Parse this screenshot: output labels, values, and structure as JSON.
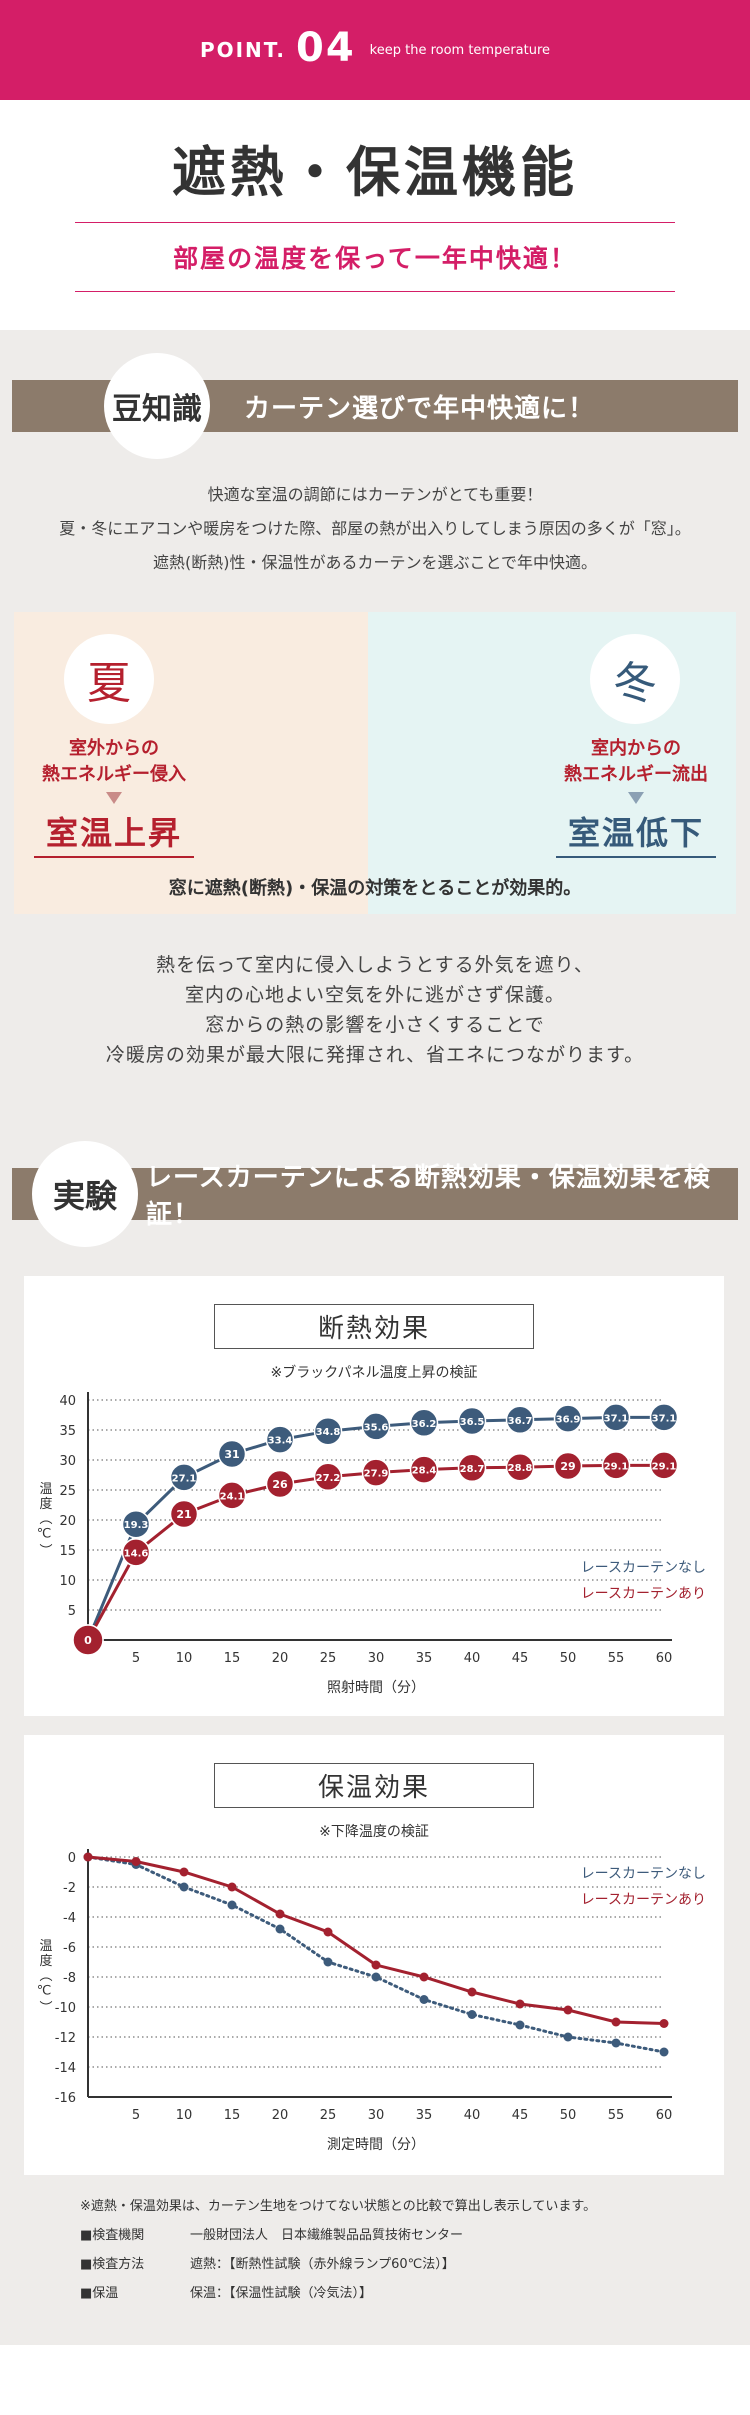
{
  "header": {
    "point_word": "POINT.",
    "point_num": "04",
    "point_sub": "keep the room temperature",
    "title": "遮熱・保温機能",
    "subtitle": "部屋の温度を保って一年中快適！"
  },
  "tip_banner": {
    "badge": "豆知識",
    "text": "カーテン選びで年中快適に！"
  },
  "intro_lines": [
    "快適な室温の調節にはカーテンがとても重要！",
    "夏・冬にエアコンや暖房をつけた際、部屋の熱が出入りしてしまう原因の多くが「窓」。",
    "遮熱(断熱)性・保温性があるカーテンを選ぶことで年中快適。"
  ],
  "season_panel": {
    "summer": {
      "kanji": "夏",
      "lead_1": "室外からの",
      "lead_2": "熱エネルギー侵入",
      "result": "室温上昇"
    },
    "winter": {
      "kanji": "冬",
      "lead_1": "室内からの",
      "lead_2": "熱エネルギー流出",
      "result": "室温低下"
    },
    "note": "窓に遮熱(断熱)・保温の対策をとることが効果的。",
    "colors": {
      "summer": "#b5202e",
      "winter": "#365a7a"
    }
  },
  "body_lines": [
    "熱を伝って室内に侵入しようとする外気を遮り、",
    "室内の心地よい空気を外に逃がさず保護。",
    "窓からの熱の影響を小さくすることで",
    "冷暖房の効果が最大限に発揮され、省エネにつながります。"
  ],
  "experiment_banner": {
    "badge": "実験",
    "text": "レースカーテンによる断熱効果・保温効果を検証！"
  },
  "chart_data": [
    {
      "type": "line",
      "title": "断熱効果",
      "subtitle": "※ブラックパネル温度上昇の検証",
      "xlabel": "照射時間（分）",
      "ylabel": "温度（℃）",
      "x": [
        0,
        5,
        10,
        15,
        20,
        25,
        30,
        35,
        40,
        45,
        50,
        55,
        60
      ],
      "x_ticks": [
        5,
        10,
        15,
        20,
        25,
        30,
        35,
        40,
        45,
        50,
        55,
        60
      ],
      "y_ticks": [
        5,
        10,
        15,
        20,
        25,
        30,
        35,
        40
      ],
      "ylim": [
        0,
        40
      ],
      "grid": true,
      "legend": "right",
      "series": [
        {
          "name": "レースカーテンなし",
          "color": "#3d5b7b",
          "values": [
            0,
            19.3,
            27.1,
            31,
            33.4,
            34.8,
            35.6,
            36.2,
            36.5,
            36.7,
            36.9,
            37.1,
            37.1
          ]
        },
        {
          "name": "レースカーテンあり",
          "color": "#a3212f",
          "values": [
            0,
            14.6,
            21,
            24.1,
            26,
            27.2,
            27.9,
            28.4,
            28.7,
            28.8,
            29,
            29.1,
            29.1
          ]
        }
      ]
    },
    {
      "type": "line",
      "title": "保温効果",
      "subtitle": "※下降温度の検証",
      "xlabel": "測定時間（分）",
      "ylabel": "温度（℃）",
      "x": [
        0,
        5,
        10,
        15,
        20,
        25,
        30,
        35,
        40,
        45,
        50,
        55,
        60
      ],
      "x_ticks": [
        5,
        10,
        15,
        20,
        25,
        30,
        35,
        40,
        45,
        50,
        55,
        60
      ],
      "y_ticks": [
        0,
        -2,
        -4,
        -6,
        -8,
        -10,
        -12,
        -14,
        -16
      ],
      "ylim": [
        -16,
        0
      ],
      "grid": true,
      "legend": "top-right",
      "series": [
        {
          "name": "レースカーテンなし",
          "color": "#3d5b7b",
          "values": [
            0,
            -0.5,
            -2,
            -3.2,
            -4.8,
            -7,
            -8,
            -9.5,
            -10.5,
            -11.2,
            -12,
            -12.4,
            -13
          ]
        },
        {
          "name": "レースカーテンあり",
          "color": "#a3212f",
          "values": [
            0,
            -0.3,
            -1,
            -2,
            -3.8,
            -5,
            -7.2,
            -8,
            -9,
            -9.8,
            -10.2,
            -11,
            -11.1
          ]
        }
      ]
    }
  ],
  "notes": {
    "disclaimer": "※遮熱・保温効果は、カーテン生地をつけてない状態との比較で算出し表示しています。",
    "rows": [
      {
        "label": "■検査機関",
        "value": "一般財団法人　日本繊維製品品質技術センター"
      },
      {
        "label": "■検査方法",
        "value": "遮熱：【断熱性試験（赤外線ランプ60℃法）】"
      },
      {
        "label": "■保温",
        "value": "保温：【保温性試験（冷気法）】"
      }
    ]
  }
}
